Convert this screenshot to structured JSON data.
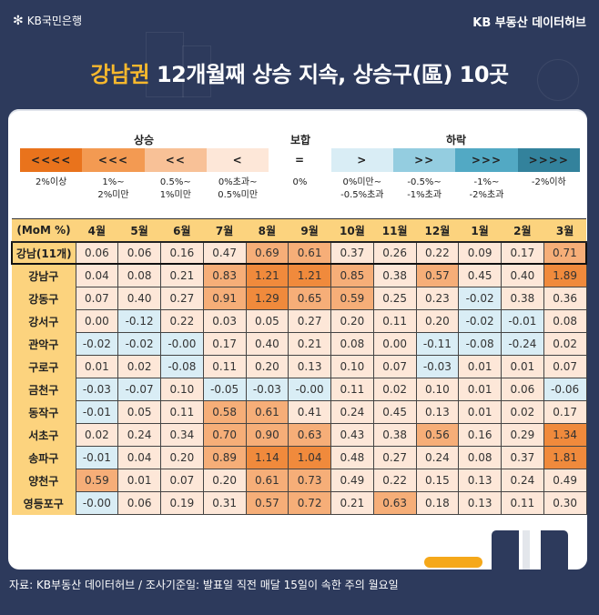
{
  "header": {
    "brand": "KB국민은행",
    "brand_icon": "kb-star-icon",
    "hub": "KB 부동산 데이터허브"
  },
  "title": {
    "highlight": "강남권",
    "rest": " 12개월째 상승 지속, 상승구(區) 10곳"
  },
  "legend": {
    "groups": [
      {
        "label": "상승"
      },
      {
        "label": "보합"
      },
      {
        "label": "하락"
      }
    ],
    "items": [
      {
        "symbol": "<<<<",
        "range": "2%이상",
        "color": "#e9731c"
      },
      {
        "symbol": "<<<",
        "range": "1%~\n2%미만",
        "color": "#f39a52"
      },
      {
        "symbol": "<<",
        "range": "0.5%~\n1%미만",
        "color": "#f8c197"
      },
      {
        "symbol": "<",
        "range": "0%초과~\n0.5%미만",
        "color": "#fde7d8"
      },
      {
        "symbol": "=",
        "range": "0%",
        "color": "#ffffff"
      },
      {
        "symbol": ">",
        "range": "0%미만~\n-0.5%초과",
        "color": "#d9edf5"
      },
      {
        "symbol": ">>",
        "range": "-0.5%~\n-1%초과",
        "color": "#94cde0"
      },
      {
        "symbol": ">>>",
        "range": "-1%~\n-2%초과",
        "color": "#52a9c4"
      },
      {
        "symbol": ">>>>",
        "range": "-2%이하",
        "color": "#33829c"
      }
    ]
  },
  "chart_data": {
    "type": "table",
    "title": "강남권 12개월째 상승 지속, 상승구(區) 10곳",
    "unit_label": "(MoM %)",
    "columns": [
      "4월",
      "5월",
      "6월",
      "7월",
      "8월",
      "9월",
      "10월",
      "11월",
      "12월",
      "1월",
      "2월",
      "3월"
    ],
    "rows": [
      {
        "name": "강남(11개)",
        "aggregate": true,
        "values": [
          "0.06",
          "0.06",
          "0.16",
          "0.47",
          "0.69",
          "0.61",
          "0.37",
          "0.26",
          "0.22",
          "0.09",
          "0.17",
          "0.71"
        ]
      },
      {
        "name": "강남구",
        "values": [
          "0.04",
          "0.08",
          "0.21",
          "0.83",
          "1.21",
          "1.21",
          "0.85",
          "0.38",
          "0.57",
          "0.45",
          "0.40",
          "1.89"
        ]
      },
      {
        "name": "강동구",
        "values": [
          "0.07",
          "0.40",
          "0.27",
          "0.91",
          "1.29",
          "0.65",
          "0.59",
          "0.25",
          "0.23",
          "-0.02",
          "0.38",
          "0.36"
        ]
      },
      {
        "name": "강서구",
        "values": [
          "0.00",
          "-0.12",
          "0.22",
          "0.03",
          "0.05",
          "0.27",
          "0.20",
          "0.11",
          "0.20",
          "-0.02",
          "-0.01",
          "0.08"
        ]
      },
      {
        "name": "관악구",
        "values": [
          "-0.02",
          "-0.02",
          "-0.00",
          "0.17",
          "0.40",
          "0.21",
          "0.08",
          "0.00",
          "-0.11",
          "-0.08",
          "-0.24",
          "0.02"
        ]
      },
      {
        "name": "구로구",
        "values": [
          "0.01",
          "0.02",
          "-0.08",
          "0.11",
          "0.20",
          "0.13",
          "0.10",
          "0.07",
          "-0.03",
          "0.01",
          "0.01",
          "0.07"
        ]
      },
      {
        "name": "금천구",
        "values": [
          "-0.03",
          "-0.07",
          "0.10",
          "-0.05",
          "-0.03",
          "-0.00",
          "0.11",
          "0.02",
          "0.10",
          "0.01",
          "0.06",
          "-0.06"
        ]
      },
      {
        "name": "동작구",
        "values": [
          "-0.01",
          "0.05",
          "0.11",
          "0.58",
          "0.61",
          "0.41",
          "0.24",
          "0.45",
          "0.13",
          "0.01",
          "0.02",
          "0.17"
        ]
      },
      {
        "name": "서초구",
        "values": [
          "0.02",
          "0.24",
          "0.34",
          "0.70",
          "0.90",
          "0.63",
          "0.43",
          "0.38",
          "0.56",
          "0.16",
          "0.29",
          "1.34"
        ]
      },
      {
        "name": "송파구",
        "values": [
          "-0.01",
          "0.04",
          "0.20",
          "0.89",
          "1.14",
          "1.04",
          "0.48",
          "0.27",
          "0.24",
          "0.08",
          "0.37",
          "1.81"
        ]
      },
      {
        "name": "양천구",
        "values": [
          "0.59",
          "0.01",
          "0.07",
          "0.20",
          "0.61",
          "0.73",
          "0.49",
          "0.22",
          "0.15",
          "0.13",
          "0.24",
          "0.49"
        ]
      },
      {
        "name": "영등포구",
        "values": [
          "-0.00",
          "0.06",
          "0.19",
          "0.31",
          "0.57",
          "0.72",
          "0.21",
          "0.63",
          "0.18",
          "0.13",
          "0.11",
          "0.30"
        ]
      }
    ]
  },
  "colors": {
    "background": "#2d3a5c",
    "highlight": "#f6b82d",
    "header_fill": "#fcd37e",
    "up_strong": "#f08a3c",
    "up_mid": "#f6ae78",
    "up_weak": "#fde7d8",
    "down_weak": "#d9edf5"
  },
  "footer": {
    "source": "자료: KB부동산 데이터허브 / 조사기준일: 발표일 직전 매달 15일이 속한 주의 월요일"
  }
}
